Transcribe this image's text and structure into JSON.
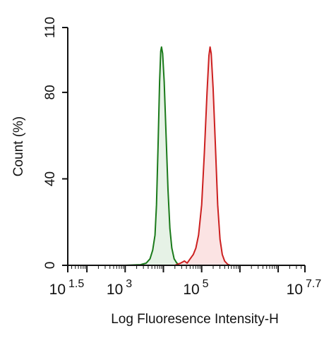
{
  "chart_data": {
    "type": "area",
    "xlabel": "Log Fluoresence Intensity-H",
    "ylabel": "Count  (%)",
    "xscale": "log",
    "xlim_exp": [
      1.5,
      7.7
    ],
    "ylim": [
      0,
      110
    ],
    "x_ticks": [
      {
        "base": "10",
        "exp": "1.5"
      },
      {
        "base": "10",
        "exp": "3"
      },
      {
        "base": "10",
        "exp": "5"
      },
      {
        "base": "10",
        "exp": "7.7"
      }
    ],
    "y_ticks": [
      "0",
      "40",
      "80",
      "110"
    ],
    "grid": false,
    "legend": "none",
    "series": [
      {
        "color": "#1a7a1a",
        "fill": "#e6f2e6",
        "points": [
          [
            3.0,
            0
          ],
          [
            3.4,
            0.3
          ],
          [
            3.55,
            1
          ],
          [
            3.65,
            3
          ],
          [
            3.72,
            7
          ],
          [
            3.78,
            14
          ],
          [
            3.82,
            28
          ],
          [
            3.86,
            55
          ],
          [
            3.9,
            85
          ],
          [
            3.93,
            99
          ],
          [
            3.95,
            101
          ],
          [
            3.98,
            98
          ],
          [
            4.02,
            85
          ],
          [
            4.07,
            60
          ],
          [
            4.12,
            35
          ],
          [
            4.17,
            17
          ],
          [
            4.22,
            8
          ],
          [
            4.28,
            3
          ],
          [
            4.35,
            1
          ],
          [
            4.42,
            0.3
          ],
          [
            4.5,
            0
          ]
        ]
      },
      {
        "color": "#cc1f1f",
        "fill": "#fbe3e3",
        "points": [
          [
            4.3,
            0
          ],
          [
            4.45,
            1
          ],
          [
            4.55,
            2
          ],
          [
            4.62,
            1
          ],
          [
            4.7,
            3
          ],
          [
            4.78,
            5
          ],
          [
            4.85,
            8
          ],
          [
            4.92,
            14
          ],
          [
            5.0,
            28
          ],
          [
            5.07,
            52
          ],
          [
            5.14,
            80
          ],
          [
            5.19,
            97
          ],
          [
            5.22,
            101
          ],
          [
            5.25,
            98
          ],
          [
            5.3,
            82
          ],
          [
            5.36,
            55
          ],
          [
            5.42,
            28
          ],
          [
            5.48,
            12
          ],
          [
            5.54,
            5
          ],
          [
            5.6,
            2
          ],
          [
            5.68,
            0.5
          ],
          [
            5.75,
            0
          ]
        ]
      }
    ]
  }
}
